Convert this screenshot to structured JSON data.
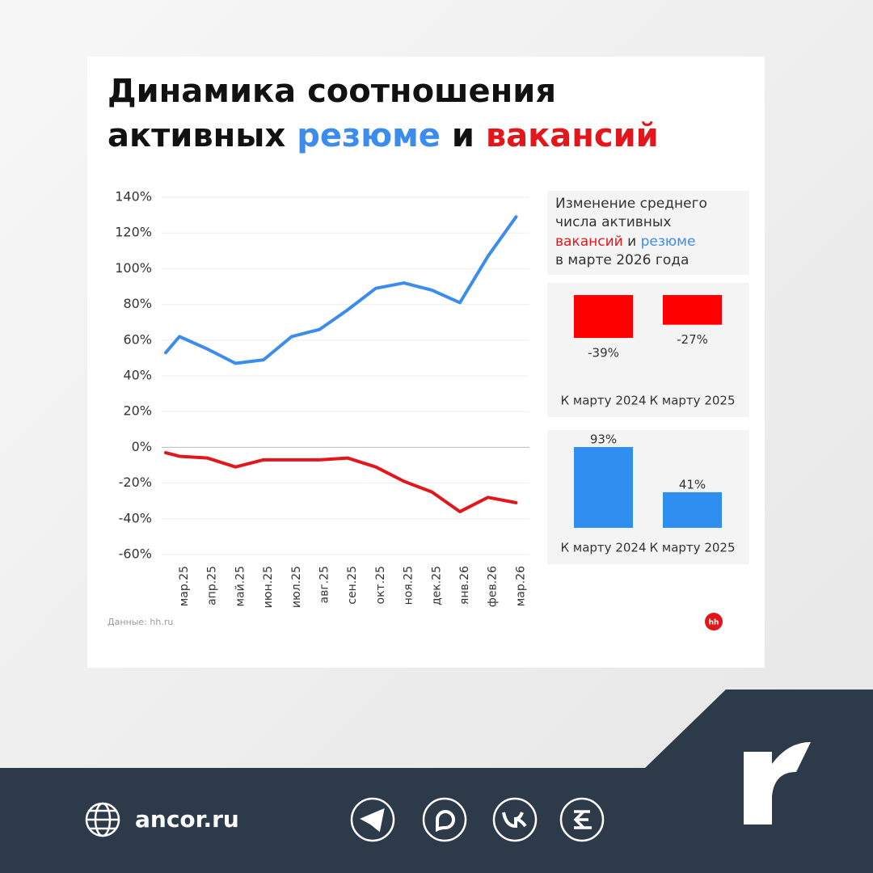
{
  "header": {
    "title_line1": "Динамика соотношения",
    "title_word1": "активных",
    "title_word2": "и"
  },
  "chart_data": [
    {
      "type": "line",
      "categories": [
        null,
        "мар.25",
        "апр.25",
        "май.25",
        "июн.25",
        "июл.25",
        "авг.25",
        "сен.25",
        "окт.25",
        "ноя.25",
        "дек.25",
        "янв.26",
        "фев.26",
        "мар.26"
      ],
      "series": [
        {
          "name": "резюме",
          "color": "#3b8ced",
          "values": [
            53,
            62,
            55,
            47,
            49,
            62,
            66,
            77,
            89,
            92,
            88,
            81,
            107,
            129
          ]
        },
        {
          "name": "вакансий",
          "color": "#e3161b",
          "values": [
            -3,
            -5,
            -6,
            -11,
            -7,
            -7,
            -7,
            -6,
            -11,
            -19,
            -25,
            -36,
            -28,
            -31
          ]
        }
      ],
      "ylim": [
        -60,
        140
      ],
      "yticks": [
        {
          "value": -60,
          "label": "-60%"
        },
        {
          "value": -40,
          "label": "-40%"
        },
        {
          "value": -20,
          "label": "-20%"
        },
        {
          "value": 0,
          "label": "0%"
        },
        {
          "value": 20,
          "label": "20%"
        },
        {
          "value": 40,
          "label": "40%"
        },
        {
          "value": 60,
          "label": "60%"
        },
        {
          "value": 80,
          "label": "80%"
        },
        {
          "value": 100,
          "label": "100%"
        },
        {
          "value": 120,
          "label": "120%"
        },
        {
          "value": 140,
          "label": "140%"
        }
      ],
      "grid": true
    },
    {
      "type": "bar",
      "categories": [
        "К марту 2024",
        "К марту 2025"
      ],
      "values": [
        -39,
        -27
      ],
      "value_labels": [
        "-39%",
        "-27%"
      ],
      "color": "#ff0000"
    },
    {
      "type": "bar",
      "categories": [
        "К марту 2024",
        "К марту 2025"
      ],
      "values": [
        93,
        41
      ],
      "value_labels": [
        "93%",
        "41%"
      ],
      "color": "#2f8ff0"
    }
  ],
  "panel": {
    "line1": "Изменение среднего",
    "line2": "числа активных",
    "word_vac": "вакансий",
    "word_and": "и",
    "word_res": "резюме",
    "line4": "в марте 2026 года"
  },
  "source": "Данные: hh.ru",
  "logo": "hh",
  "footer": {
    "site": "ancor.ru"
  }
}
